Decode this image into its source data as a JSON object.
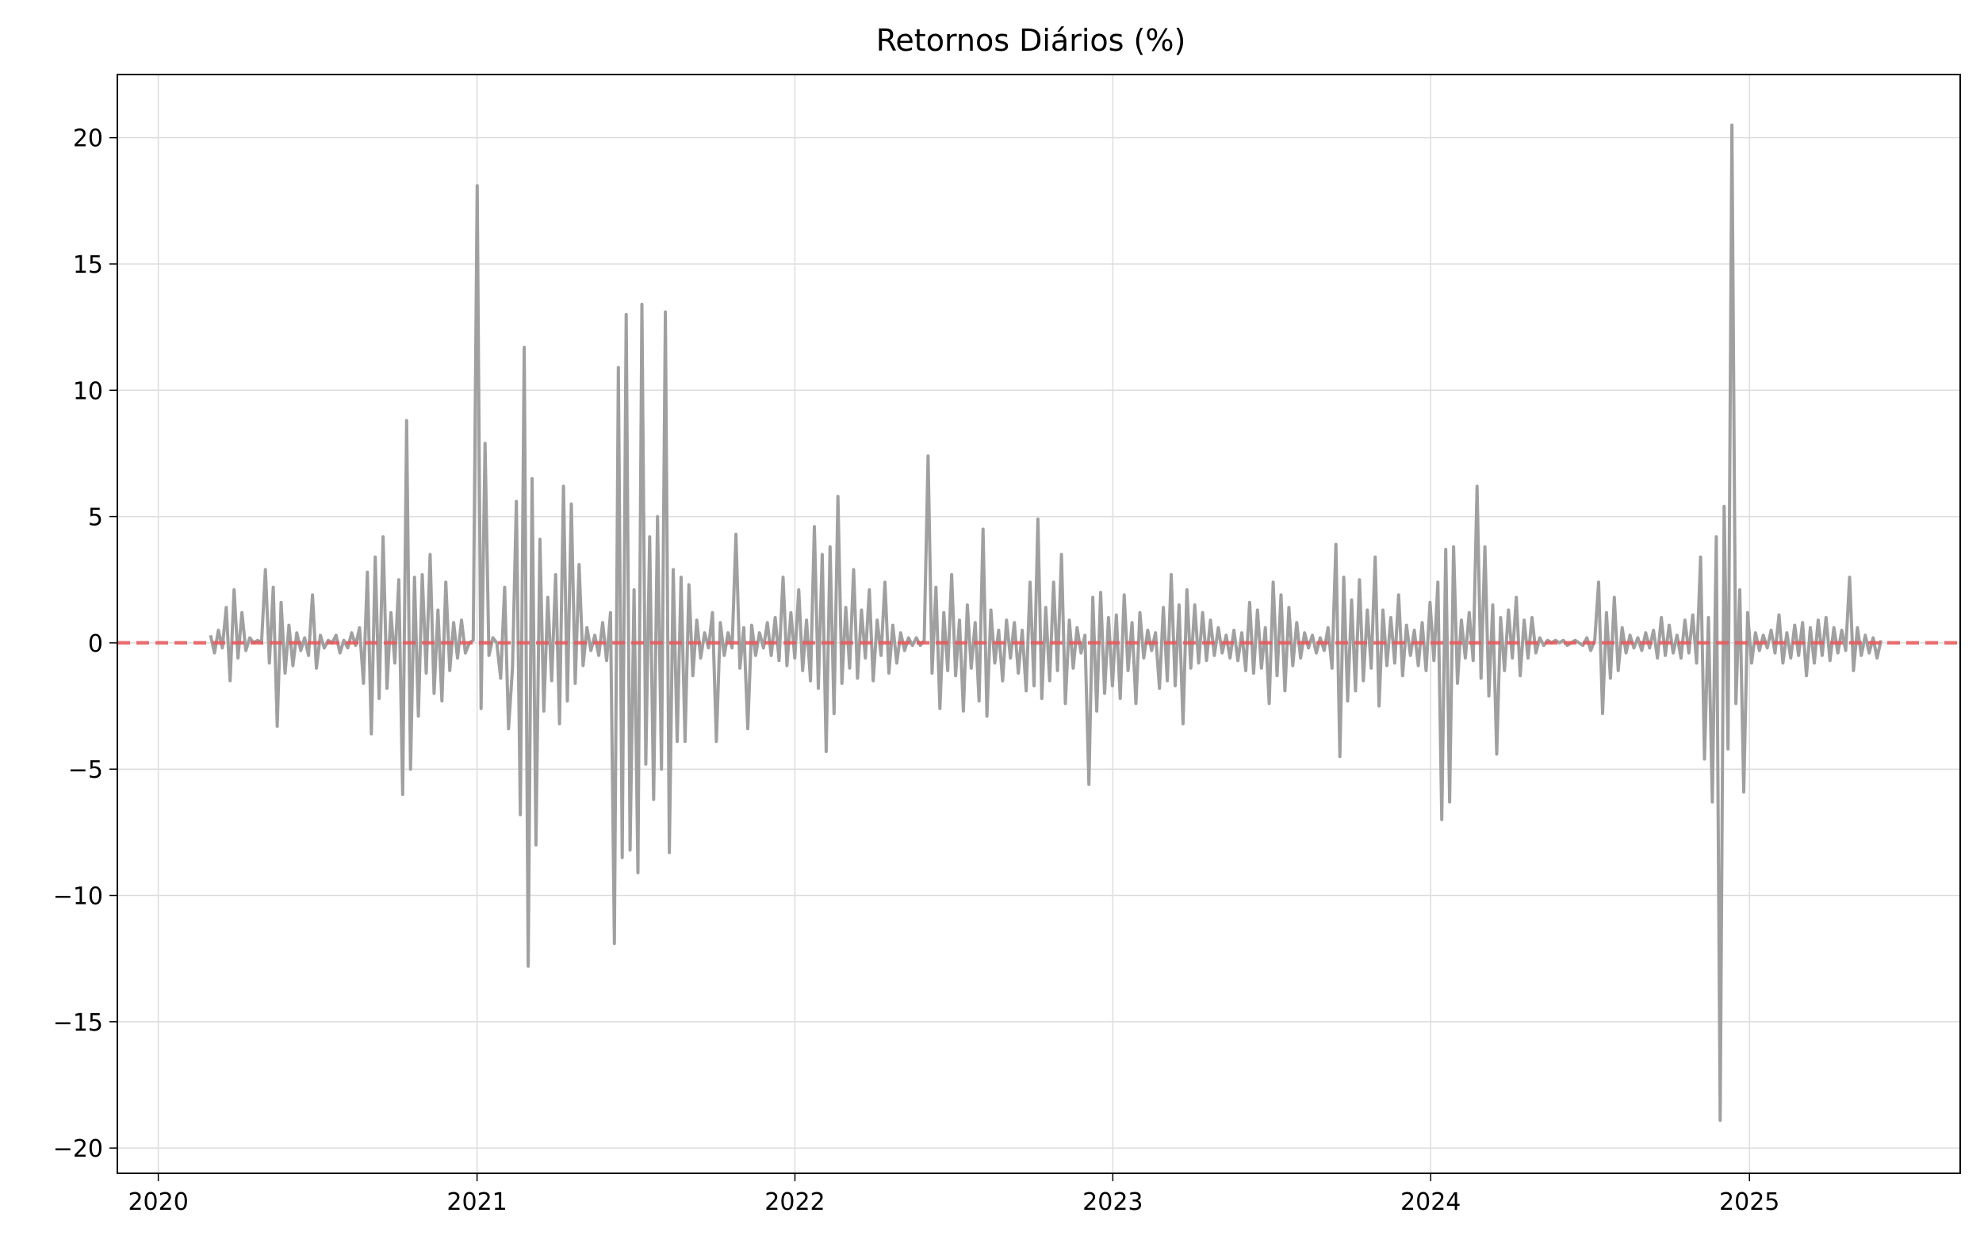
{
  "chart_data": {
    "type": "line",
    "title": "Retornos Diários (%)",
    "xlabel": "",
    "ylabel": "",
    "x_axis": {
      "scale": "date",
      "range": [
        "2019-11-15",
        "2025-08-31"
      ],
      "ticks": [
        "2020",
        "2021",
        "2022",
        "2023",
        "2024",
        "2025"
      ]
    },
    "y_axis": {
      "range": [
        -21,
        22.5
      ],
      "ticks": [
        20,
        15,
        10,
        5,
        0,
        -5,
        -10,
        -15,
        -20
      ],
      "tick_labels": [
        "20",
        "15",
        "10",
        "5",
        "0",
        "−5",
        "−10",
        "−15",
        "−20"
      ]
    },
    "grid": true,
    "legend": "none",
    "colors": {
      "series": "#a0a0a0",
      "reference": "#e8585a",
      "grid": "#dddddd",
      "axes": "#000000"
    },
    "reference_line": {
      "y": 0,
      "style": "dashed"
    },
    "series": [
      {
        "x_start": "2020-03-01",
        "x_end": "2025-06-01",
        "values": [
          0.3,
          -0.4,
          0.5,
          -0.2,
          1.4,
          -1.5,
          2.1,
          -0.6,
          1.2,
          -0.3,
          0.2,
          0.0,
          0.1,
          0.0,
          2.9,
          -0.8,
          2.2,
          -3.3,
          1.6,
          -1.2,
          0.7,
          -0.9,
          0.4,
          -0.3,
          0.2,
          -0.5,
          1.9,
          -1.0,
          0.3,
          -0.2,
          0.1,
          0.0,
          0.3,
          -0.4,
          0.1,
          -0.2,
          0.4,
          -0.1,
          0.6,
          -1.6,
          2.8,
          -3.6,
          3.4,
          -2.2,
          4.2,
          -1.8,
          1.2,
          -0.8,
          2.5,
          -6.0,
          8.8,
          -5.0,
          2.6,
          -2.9,
          2.7,
          -1.2,
          3.5,
          -2.0,
          1.3,
          -2.3,
          2.4,
          -1.1,
          0.8,
          -0.6,
          0.9,
          -0.4,
          0.0,
          0.1,
          18.1,
          -2.6,
          7.9,
          -0.5,
          0.2,
          0.0,
          -1.4,
          2.2,
          -3.4,
          -1.0,
          5.6,
          -6.8,
          11.7,
          -12.8,
          6.5,
          -8.0,
          4.1,
          -2.7,
          1.8,
          -1.5,
          2.7,
          -3.2,
          6.2,
          -2.3,
          5.5,
          -1.6,
          3.1,
          -0.9,
          0.6,
          -0.3,
          0.3,
          -0.5,
          0.8,
          -0.7,
          1.2,
          -11.9,
          10.9,
          -8.5,
          13.0,
          -8.2,
          2.1,
          -9.1,
          13.4,
          -4.8,
          4.2,
          -6.2,
          5.0,
          -5.0,
          13.1,
          -8.3,
          2.9,
          -3.9,
          2.6,
          -3.9,
          2.3,
          -1.3,
          0.9,
          -0.6,
          0.4,
          -0.2,
          1.2,
          -3.9,
          0.8,
          -0.5,
          0.4,
          -0.2,
          4.3,
          -1.0,
          0.6,
          -3.4,
          0.7,
          -0.5,
          0.4,
          -0.2,
          0.8,
          -0.5,
          1.0,
          -0.7,
          2.6,
          -0.9,
          1.2,
          -0.6,
          2.1,
          -1.1,
          0.9,
          -1.5,
          4.6,
          -1.8,
          3.5,
          -4.3,
          3.8,
          -2.8,
          5.8,
          -1.6,
          1.4,
          -1.0,
          2.9,
          -1.4,
          1.3,
          -0.6,
          2.1,
          -1.5,
          0.9,
          -0.5,
          2.4,
          -1.2,
          0.7,
          -0.8,
          0.4,
          -0.3,
          0.2,
          -0.1,
          0.2,
          -0.1,
          0.1,
          7.4,
          -1.2,
          2.2,
          -2.6,
          1.2,
          -1.1,
          2.7,
          -1.3,
          0.9,
          -2.7,
          1.5,
          -1.0,
          0.8,
          -2.3,
          4.5,
          -2.9,
          1.3,
          -0.8,
          0.5,
          -1.5,
          0.9,
          -0.6,
          0.8,
          -1.2,
          0.5,
          -1.9,
          2.4,
          -1.7,
          4.9,
          -2.2,
          1.4,
          -1.5,
          2.4,
          -1.1,
          3.5,
          -2.4,
          0.9,
          -1.0,
          0.6,
          -0.4,
          0.3,
          -5.6,
          1.8,
          -2.7,
          2.0,
          -2.0,
          1.0,
          -1.7,
          1.1,
          -2.2,
          1.9,
          -1.1,
          0.8,
          -2.4,
          1.2,
          -0.6,
          0.5,
          -0.3,
          0.4,
          -1.8,
          1.4,
          -1.5,
          2.7,
          -1.7,
          1.5,
          -3.2,
          2.1,
          -1.0,
          1.5,
          -0.8,
          1.2,
          -0.7,
          0.9,
          -0.5,
          0.6,
          -0.4,
          0.3,
          -0.6,
          0.5,
          -0.7,
          0.4,
          -1.1,
          1.6,
          -1.2,
          1.3,
          -1.0,
          0.6,
          -2.4,
          2.4,
          -1.3,
          1.9,
          -1.9,
          1.4,
          -0.9,
          0.8,
          -0.6,
          0.4,
          -0.2,
          0.3,
          -0.4,
          0.2,
          -0.3,
          0.6,
          -1.0,
          3.9,
          -4.5,
          2.6,
          -2.3,
          1.7,
          -1.9,
          2.5,
          -1.5,
          1.3,
          -1.0,
          3.4,
          -2.5,
          1.3,
          -0.9,
          1.0,
          -0.8,
          1.9,
          -1.3,
          0.7,
          -0.5,
          0.5,
          -0.9,
          0.8,
          -1.1,
          1.6,
          -0.7,
          2.4,
          -7.0,
          3.7,
          -6.3,
          3.8,
          -1.6,
          0.9,
          -0.6,
          1.2,
          -0.7,
          6.2,
          -1.4,
          3.8,
          -2.1,
          1.5,
          -4.4,
          1.0,
          -1.1,
          1.3,
          -0.6,
          1.8,
          -1.3,
          0.9,
          -0.6,
          1.0,
          -0.4,
          0.2,
          -0.1,
          0.1,
          0.0,
          0.1,
          0.0,
          0.1,
          -0.1,
          0.0,
          0.1,
          0.0,
          -0.1,
          0.2,
          -0.3,
          0.1,
          2.4,
          -2.8,
          1.2,
          -1.4,
          1.8,
          -1.1,
          0.6,
          -0.4,
          0.3,
          -0.2,
          0.2,
          -0.3,
          0.4,
          -0.2,
          0.5,
          -0.6,
          1.0,
          -0.5,
          0.7,
          -0.4,
          0.3,
          -0.6,
          0.9,
          -0.4,
          1.1,
          -0.8,
          3.4,
          -4.6,
          1.0,
          -6.3,
          4.2,
          -18.9,
          5.4,
          -4.2,
          20.5,
          -2.4,
          2.1,
          -5.9,
          1.2,
          -0.8,
          0.4,
          -0.3,
          0.3,
          -0.2,
          0.5,
          -0.4,
          1.1,
          -0.8,
          0.4,
          -0.6,
          0.7,
          -0.5,
          0.8,
          -1.3,
          0.6,
          -0.8,
          0.9,
          -0.5,
          1.0,
          -0.7,
          0.6,
          -0.4,
          0.5,
          -0.3,
          2.6,
          -1.1,
          0.6,
          -0.5,
          0.3,
          -0.4,
          0.2,
          -0.6,
          0.1
        ]
      }
    ]
  }
}
